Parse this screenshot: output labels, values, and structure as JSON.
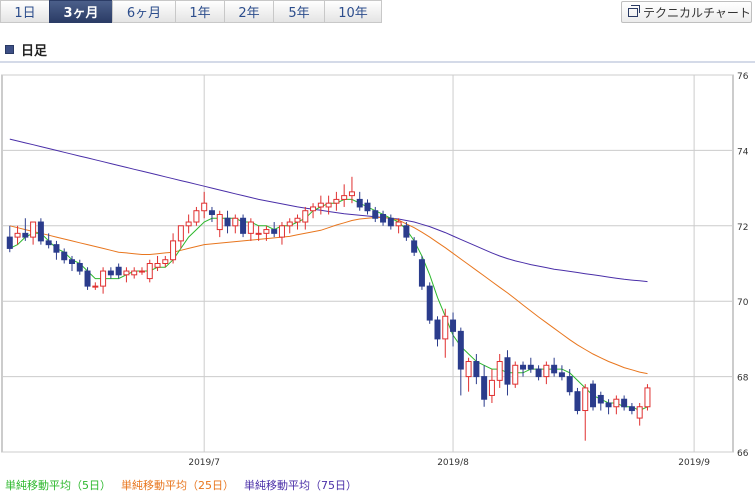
{
  "periods": [
    "1日",
    "3ヶ月",
    "6ヶ月",
    "1年",
    "2年",
    "5年",
    "10年"
  ],
  "active_period": "3ヶ月",
  "technical_button": "テクニカルチャート",
  "section_title": "日足",
  "legend": [
    {
      "label": "単純移動平均（5日）",
      "color": "#2db82d"
    },
    {
      "label": "単純移動平均（25日）",
      "color": "#e8761e"
    },
    {
      "label": "単純移動平均（75日）",
      "color": "#4a2fa8"
    }
  ],
  "colors": {
    "up": "#e03030",
    "down": "#2b3c8c",
    "grid": "#cccccc",
    "frame": "#999999"
  },
  "chart_data": {
    "type": "candlestick",
    "ylim": [
      66,
      76
    ],
    "yticks": [
      66,
      68,
      70,
      72,
      74,
      76
    ],
    "xticks": [
      {
        "label": "2019/7",
        "index": 25
      },
      {
        "label": "2019/8",
        "index": 57
      },
      {
        "label": "2019/9",
        "index": 88
      }
    ],
    "x_count": 93,
    "candles": [
      [
        71.7,
        72.0,
        71.3,
        71.4
      ],
      [
        71.7,
        72.0,
        71.5,
        71.8
      ],
      [
        71.8,
        72.2,
        71.6,
        71.7
      ],
      [
        71.7,
        72.1,
        71.5,
        72.1
      ],
      [
        72.1,
        72.2,
        71.5,
        71.6
      ],
      [
        71.6,
        71.8,
        71.4,
        71.5
      ],
      [
        71.5,
        71.6,
        71.1,
        71.3
      ],
      [
        71.3,
        71.4,
        71.0,
        71.1
      ],
      [
        71.1,
        71.2,
        70.8,
        71.0
      ],
      [
        71.0,
        71.1,
        70.7,
        70.8
      ],
      [
        70.8,
        70.9,
        70.3,
        70.4
      ],
      [
        70.4,
        70.5,
        70.3,
        70.4
      ],
      [
        70.4,
        70.9,
        70.2,
        70.8
      ],
      [
        70.8,
        70.9,
        70.6,
        70.7
      ],
      [
        70.9,
        71.0,
        70.6,
        70.7
      ],
      [
        70.7,
        70.9,
        70.5,
        70.8
      ],
      [
        70.7,
        70.9,
        70.6,
        70.8
      ],
      [
        70.8,
        70.9,
        70.7,
        70.8
      ],
      [
        70.6,
        71.1,
        70.5,
        71.0
      ],
      [
        70.9,
        71.2,
        70.8,
        71.0
      ],
      [
        71.0,
        71.2,
        70.9,
        71.1
      ],
      [
        71.1,
        71.8,
        71.0,
        71.6
      ],
      [
        71.6,
        72.0,
        71.4,
        72.0
      ],
      [
        72.0,
        72.3,
        71.8,
        72.1
      ],
      [
        72.1,
        72.5,
        72.0,
        72.4
      ],
      [
        72.4,
        72.9,
        72.2,
        72.6
      ],
      [
        72.4,
        72.5,
        72.1,
        72.3
      ],
      [
        71.9,
        72.4,
        71.7,
        72.3
      ],
      [
        72.2,
        72.4,
        71.8,
        72.0
      ],
      [
        72.0,
        72.3,
        71.8,
        72.2
      ],
      [
        72.2,
        72.3,
        71.7,
        71.8
      ],
      [
        71.8,
        72.2,
        71.6,
        72.1
      ],
      [
        71.8,
        72.0,
        71.6,
        71.8
      ],
      [
        71.8,
        72.0,
        71.6,
        71.9
      ],
      [
        71.9,
        72.1,
        71.7,
        71.8
      ],
      [
        71.7,
        72.1,
        71.5,
        72.0
      ],
      [
        72.0,
        72.2,
        71.8,
        72.1
      ],
      [
        72.1,
        72.3,
        71.9,
        72.2
      ],
      [
        72.1,
        72.5,
        71.9,
        72.4
      ],
      [
        72.4,
        72.6,
        72.2,
        72.5
      ],
      [
        72.5,
        72.8,
        72.3,
        72.6
      ],
      [
        72.5,
        72.8,
        72.3,
        72.6
      ],
      [
        72.6,
        72.9,
        72.4,
        72.7
      ],
      [
        72.7,
        73.1,
        72.5,
        72.8
      ],
      [
        72.8,
        73.3,
        72.6,
        72.9
      ],
      [
        72.7,
        72.9,
        72.4,
        72.5
      ],
      [
        72.6,
        72.7,
        72.3,
        72.4
      ],
      [
        72.4,
        72.5,
        72.1,
        72.2
      ],
      [
        72.3,
        72.4,
        72.0,
        72.1
      ],
      [
        72.2,
        72.3,
        71.9,
        72.0
      ],
      [
        72.0,
        72.2,
        71.8,
        72.1
      ],
      [
        72.0,
        72.1,
        71.6,
        71.7
      ],
      [
        71.6,
        71.7,
        71.2,
        71.3
      ],
      [
        71.1,
        71.2,
        70.3,
        70.4
      ],
      [
        70.4,
        70.5,
        69.4,
        69.5
      ],
      [
        69.5,
        69.6,
        68.8,
        69.0
      ],
      [
        69.0,
        69.8,
        68.5,
        69.6
      ],
      [
        69.5,
        69.7,
        68.8,
        69.2
      ],
      [
        69.2,
        69.3,
        67.5,
        68.2
      ],
      [
        68.0,
        68.5,
        67.6,
        68.4
      ],
      [
        68.4,
        68.6,
        67.8,
        68.0
      ],
      [
        68.0,
        68.3,
        67.2,
        67.4
      ],
      [
        67.5,
        68.2,
        67.3,
        67.9
      ],
      [
        67.9,
        68.6,
        67.7,
        68.4
      ],
      [
        68.5,
        68.7,
        67.5,
        67.8
      ],
      [
        67.8,
        68.4,
        67.7,
        68.3
      ],
      [
        68.3,
        68.4,
        68.0,
        68.2
      ],
      [
        68.3,
        68.5,
        68.1,
        68.2
      ],
      [
        68.2,
        68.3,
        67.9,
        68.0
      ],
      [
        68.0,
        68.4,
        67.8,
        68.3
      ],
      [
        68.3,
        68.5,
        68.0,
        68.1
      ],
      [
        68.1,
        68.3,
        67.9,
        68.0
      ],
      [
        68.0,
        68.2,
        67.5,
        67.6
      ],
      [
        67.6,
        67.7,
        67.0,
        67.1
      ],
      [
        67.1,
        67.8,
        66.3,
        67.7
      ],
      [
        67.8,
        67.9,
        67.1,
        67.2
      ],
      [
        67.5,
        67.6,
        67.1,
        67.3
      ],
      [
        67.3,
        67.4,
        67.0,
        67.2
      ],
      [
        67.2,
        67.5,
        67.0,
        67.4
      ],
      [
        67.4,
        67.5,
        67.1,
        67.2
      ],
      [
        67.2,
        67.3,
        67.0,
        67.1
      ],
      [
        66.9,
        67.3,
        66.7,
        67.2
      ],
      [
        67.2,
        67.8,
        67.1,
        67.7
      ]
    ],
    "ma5": [
      71.4,
      71.5,
      71.7,
      71.8,
      71.8,
      71.6,
      71.4,
      71.3,
      71.1,
      71.0,
      70.8,
      70.6,
      70.6,
      70.6,
      70.6,
      70.7,
      70.8,
      70.8,
      70.8,
      70.9,
      70.9,
      71.1,
      71.4,
      71.7,
      71.9,
      72.1,
      72.2,
      72.2,
      72.2,
      72.2,
      72.1,
      72.1,
      72.0,
      72.0,
      71.9,
      72.0,
      72.0,
      72.1,
      72.2,
      72.4,
      72.5,
      72.6,
      72.6,
      72.7,
      72.7,
      72.6,
      72.5,
      72.4,
      72.3,
      72.2,
      72.1,
      71.9,
      71.6,
      71.2,
      70.7,
      70.1,
      69.6,
      69.1,
      68.8,
      68.6,
      68.4,
      68.3,
      68.2,
      68.2,
      68.1,
      68.1,
      68.1,
      68.2,
      68.2,
      68.2,
      68.2,
      68.2,
      68.1,
      67.9,
      67.7,
      67.5,
      67.4,
      67.3,
      67.3,
      67.2,
      67.2,
      67.1,
      67.2
    ],
    "ma25": [
      72.0,
      71.95,
      71.9,
      71.85,
      71.8,
      71.75,
      71.7,
      71.65,
      71.6,
      71.55,
      71.5,
      71.45,
      71.4,
      71.35,
      71.3,
      71.28,
      71.26,
      71.24,
      71.24,
      71.26,
      71.28,
      71.3,
      71.35,
      71.4,
      71.45,
      71.5,
      71.52,
      71.54,
      71.56,
      71.58,
      71.6,
      71.62,
      71.64,
      71.66,
      71.68,
      71.7,
      71.72,
      71.76,
      71.8,
      71.84,
      71.88,
      71.95,
      72.02,
      72.08,
      72.14,
      72.18,
      72.2,
      72.22,
      72.22,
      72.2,
      72.15,
      72.05,
      71.95,
      71.83,
      71.7,
      71.56,
      71.42,
      71.27,
      71.12,
      70.97,
      70.82,
      70.67,
      70.52,
      70.37,
      70.22,
      70.06,
      69.9,
      69.74,
      69.58,
      69.43,
      69.28,
      69.13,
      68.98,
      68.84,
      68.72,
      68.6,
      68.5,
      68.4,
      68.32,
      68.24,
      68.18,
      68.12,
      68.08
    ],
    "ma75": [
      74.3,
      74.25,
      74.2,
      74.15,
      74.1,
      74.05,
      74.0,
      73.95,
      73.9,
      73.85,
      73.8,
      73.75,
      73.7,
      73.65,
      73.6,
      73.55,
      73.5,
      73.45,
      73.4,
      73.35,
      73.3,
      73.25,
      73.2,
      73.15,
      73.1,
      73.05,
      73.0,
      72.95,
      72.9,
      72.85,
      72.8,
      72.75,
      72.7,
      72.66,
      72.62,
      72.58,
      72.54,
      72.5,
      72.47,
      72.44,
      72.41,
      72.38,
      72.35,
      72.32,
      72.3,
      72.28,
      72.26,
      72.24,
      72.22,
      72.2,
      72.18,
      72.14,
      72.1,
      72.04,
      71.98,
      71.9,
      71.82,
      71.73,
      71.64,
      71.55,
      71.46,
      71.37,
      71.28,
      71.2,
      71.13,
      71.07,
      71.02,
      70.97,
      70.93,
      70.89,
      70.85,
      70.82,
      70.79,
      70.76,
      70.73,
      70.7,
      70.67,
      70.64,
      70.61,
      70.58,
      70.56,
      70.54,
      70.52
    ]
  }
}
